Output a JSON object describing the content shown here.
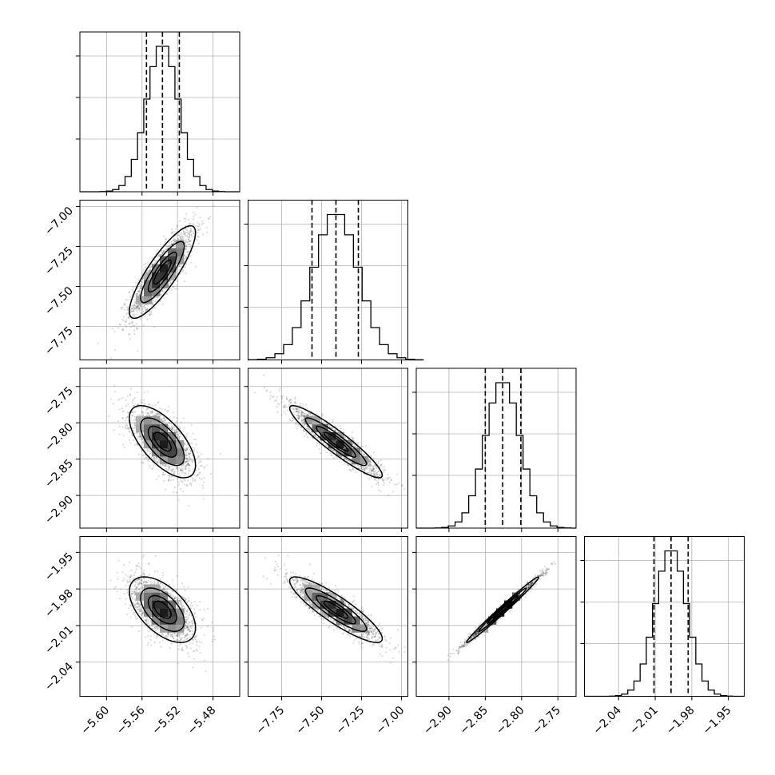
{
  "chart_data": {
    "type": "corner",
    "parameters": [
      {
        "range": [
          -5.63,
          -5.45
        ],
        "ticks": [
          "−5.60",
          "−5.56",
          "−5.52",
          "−5.48"
        ],
        "tick_values": [
          -5.6,
          -5.56,
          -5.52,
          -5.48
        ],
        "mean": -5.537,
        "std": 0.018,
        "quantiles": [
          -5.555,
          -5.537,
          -5.518
        ]
      },
      {
        "range": [
          -7.96,
          -6.96
        ],
        "ticks": [
          "−7.75",
          "−7.50",
          "−7.25",
          "−7.00"
        ],
        "tick_values": [
          -7.75,
          -7.5,
          -7.25,
          -7.0
        ],
        "mean": -7.41,
        "std": 0.14,
        "quantiles": [
          -7.56,
          -7.41,
          -7.27
        ]
      },
      {
        "range": [
          -2.945,
          -2.725
        ],
        "ticks": [
          "−2.90",
          "−2.85",
          "−2.80",
          "−2.75"
        ],
        "tick_values": [
          -2.9,
          -2.85,
          -2.8,
          -2.75
        ],
        "mean": -2.826,
        "std": 0.024,
        "quantiles": [
          -2.85,
          -2.826,
          -2.801
        ]
      },
      {
        "range": [
          -2.068,
          -1.937
        ],
        "ticks": [
          "−2.04",
          "−2.01",
          "−1.98",
          "−1.95"
        ],
        "tick_values": [
          -2.04,
          -2.01,
          -1.98,
          -1.95
        ],
        "mean": -1.997,
        "std": 0.013,
        "quantiles": [
          -2.011,
          -1.997,
          -1.983
        ]
      }
    ],
    "hist_bins": 20,
    "hist_grid_fractions": [
      0.33,
      0.59,
      0.85
    ],
    "correlations": [
      [
        1.0,
        0.85,
        -0.65,
        -0.55
      ],
      [
        0.85,
        1.0,
        -0.93,
        -0.88
      ],
      [
        -0.65,
        -0.93,
        1.0,
        0.99
      ],
      [
        -0.55,
        -0.88,
        0.99,
        1.0
      ]
    ],
    "contour_levels_sigma": [
      0.5,
      1.0,
      1.5,
      2.0
    ],
    "grid": true,
    "colors": {
      "line": "#000000",
      "grid": "#b0b0b0",
      "density": "#000000"
    }
  }
}
